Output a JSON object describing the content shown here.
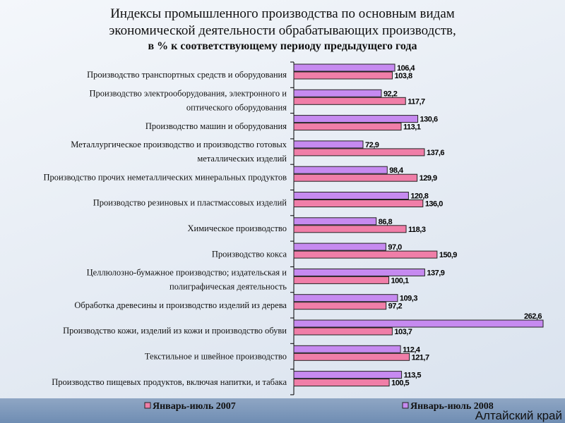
{
  "chart_data": {
    "type": "bar",
    "orientation": "horizontal",
    "title": [
      "Индексы промышленного производства по основным видам",
      "экономической деятельности обрабатывающих производств,",
      "в % к соответствующему периоду предыдущего года"
    ],
    "categories": [
      [
        "Производство транспортных средств и оборудования"
      ],
      [
        "Производство электрооборудования, электронного и",
        "оптического оборудования"
      ],
      [
        "Производство машин и оборудования"
      ],
      [
        "Металлургическое производство и производство готовых",
        "металлических изделий"
      ],
      [
        "Производство прочих неметаллических минеральных продуктов"
      ],
      [
        "Производство резиновых и пластмассовых изделий"
      ],
      [
        "Химическое производство"
      ],
      [
        "Производство кокса"
      ],
      [
        "Целлюлозно-бумажное производство; издательская и",
        "полиграфическая деятельность"
      ],
      [
        "Обработка древесины и производство изделий из дерева"
      ],
      [
        "Производство кожи, изделий из кожи и производство обуви"
      ],
      [
        "Текстильное и швейное производство"
      ],
      [
        "Производство пищевых продуктов, включая напитки, и табака"
      ]
    ],
    "series": [
      {
        "name": "Январь-июль 2008",
        "color": "#c68af0",
        "values": [
          106.4,
          92.2,
          130.6,
          72.9,
          98.4,
          120.8,
          86.8,
          97.0,
          137.9,
          109.3,
          262.6,
          112.4,
          113.5
        ],
        "labels": [
          "106,4",
          "92,2",
          "130,6",
          "72,9",
          "98,4",
          "120,8",
          "86,8",
          "97,0",
          "137,9",
          "109,3",
          "262,6",
          "112,4",
          "113,5"
        ]
      },
      {
        "name": "Январь-июль 2007",
        "color": "#f07ea8",
        "values": [
          103.8,
          117.7,
          113.1,
          137.6,
          129.9,
          136.0,
          118.3,
          150.9,
          100.1,
          97.2,
          103.7,
          121.7,
          100.5
        ],
        "labels": [
          "103,8",
          "117,7",
          "113,1",
          "137,6",
          "129,9",
          "136,0",
          "118,3",
          "150,9",
          "100,1",
          "97,2",
          "103,7",
          "121,7",
          "100,5"
        ]
      }
    ],
    "xlim": [
      0,
      262.6
    ],
    "legend": "bottom"
  },
  "footer": {
    "region": "Алтайский край"
  }
}
